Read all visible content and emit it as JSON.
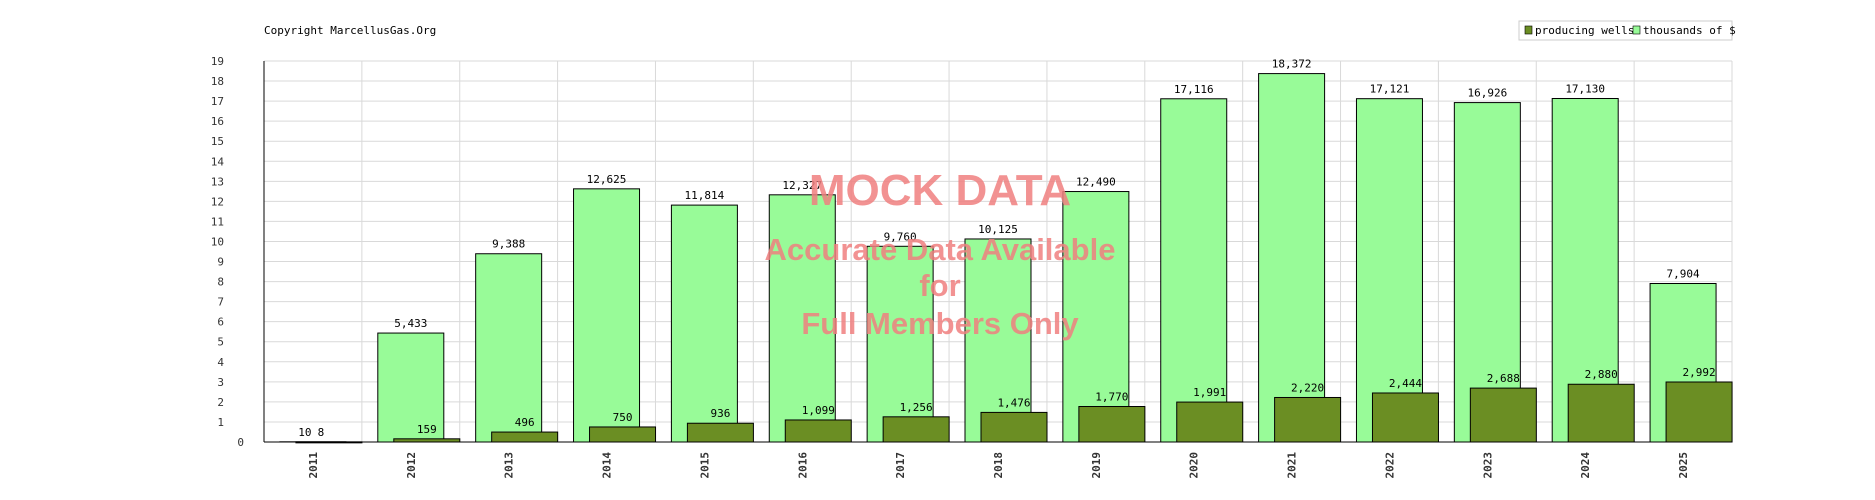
{
  "copyright": "Copyright MarcellusGas.Org",
  "watermark": {
    "line1": "MOCK DATA",
    "line2": "Accurate Data Available",
    "line3": "for",
    "line4": "Full Members Only",
    "color": "#f08080"
  },
  "chart_data": {
    "type": "bar",
    "categories": [
      "2011",
      "2012",
      "2013",
      "2014",
      "2015",
      "2016",
      "2017",
      "2018",
      "2019",
      "2020",
      "2021",
      "2022",
      "2023",
      "2024",
      "2025"
    ],
    "series": [
      {
        "name": "producing wells",
        "color": "#6b8e23",
        "values": [
          8,
          159,
          496,
          750,
          936,
          1099,
          1256,
          1476,
          1770,
          1991,
          2220,
          2444,
          2688,
          2880,
          2992
        ],
        "labels": [
          "8",
          "159",
          "496",
          "750",
          "936",
          "1,099",
          "1,256",
          "1,476",
          "1,770",
          "1,991",
          "2,220",
          "2,444",
          "2,688",
          "2,880",
          "2,992"
        ]
      },
      {
        "name": "thousands of $",
        "color": "#98fb98",
        "values": [
          10,
          5433,
          9388,
          12625,
          11814,
          12327,
          9760,
          10125,
          12490,
          17116,
          18372,
          17121,
          16926,
          17130,
          7904
        ],
        "labels": [
          "10",
          "5,433",
          "9,388",
          "12,625",
          "11,814",
          "12,327",
          "9,760",
          "10,125",
          "12,490",
          "17,116",
          "18,372",
          "17,121",
          "16,926",
          "17,130",
          "7,904"
        ]
      }
    ],
    "y_ticks": [
      "0",
      "1",
      "2",
      "3",
      "4",
      "5",
      "6",
      "7",
      "8",
      "9",
      "10",
      "11",
      "12",
      "13",
      "14",
      "15",
      "16",
      "17",
      "18",
      "19"
    ],
    "ylim": [
      0,
      19
    ],
    "y_unit_value": 1000,
    "grid": true,
    "legend_position": "top-right"
  }
}
